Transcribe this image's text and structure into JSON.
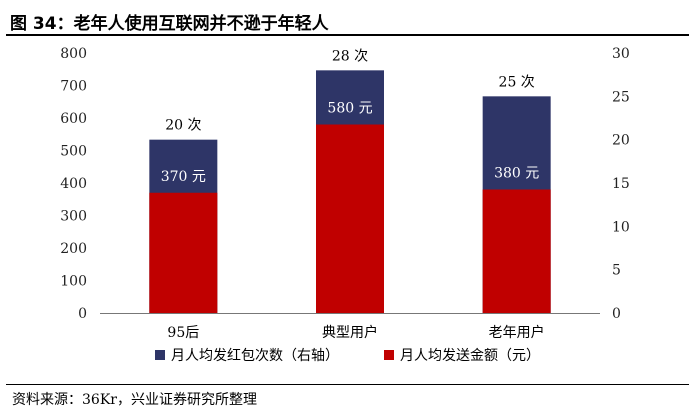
{
  "title": "图 34：老年人使用互联网并不逊于年轻人",
  "source": "资料来源：36Kr，兴业证券研究所整理",
  "colors": {
    "red_envelope": "#2E3567",
    "spend": "#C00000"
  },
  "chart_data": {
    "type": "bar",
    "categories": [
      "95后",
      "典型用户",
      "老年用户"
    ],
    "series": [
      {
        "name": "月人均发送金额（元）",
        "axis": "left",
        "values": [
          370,
          580,
          380
        ],
        "labels": [
          "370 元",
          "580 元",
          "380 元"
        ]
      },
      {
        "name": "月人均发红包次数（右轴）",
        "axis": "right",
        "values": [
          20,
          28,
          25
        ],
        "labels": [
          "20 次",
          "28 次",
          "25 次"
        ]
      }
    ],
    "y_left": {
      "lim": [
        0,
        800
      ],
      "ticks": [
        0,
        100,
        200,
        300,
        400,
        500,
        600,
        700,
        800
      ]
    },
    "y_right": {
      "lim": [
        0,
        30
      ],
      "ticks": [
        0,
        5,
        10,
        15,
        20,
        25,
        30
      ]
    },
    "legend": [
      {
        "label": "月人均发红包次数（右轴）",
        "color": "#2E3567"
      },
      {
        "label": "月人均发送金额（元）",
        "color": "#C00000"
      }
    ],
    "legend_position": "bottom",
    "grid": false,
    "stacking": "overlapped"
  }
}
